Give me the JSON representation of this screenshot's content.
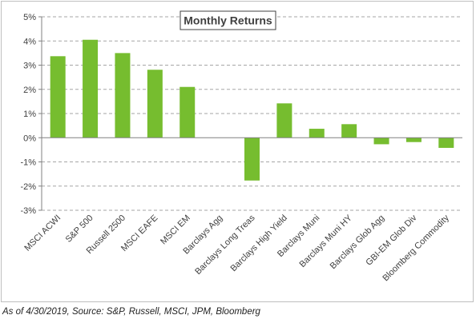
{
  "chart_data": {
    "type": "bar",
    "title": "Monthly Returns",
    "categories": [
      "MSCI ACWI",
      "S&P 500",
      "Russell 2500",
      "MSCI EAFE",
      "MSCI EM",
      "Barclays Agg",
      "Barclays Long Treas",
      "Barclays High Yield",
      "Barclays Muni",
      "Barclays Muni HY",
      "Barclays Glob Agg",
      "GBI-EM Glob Div",
      "Bloomberg Commodity"
    ],
    "values": [
      3.37,
      4.05,
      3.5,
      2.81,
      2.1,
      0.0,
      -1.77,
      1.42,
      0.37,
      0.56,
      -0.27,
      -0.18,
      -0.42
    ],
    "y_ticks": [
      "5%",
      "4%",
      "3%",
      "2%",
      "1%",
      "0%",
      "-1%",
      "-2%",
      "-3%"
    ],
    "ylim": [
      -3,
      5
    ],
    "y_unit": "%",
    "xlabel": "",
    "ylabel": "",
    "grid": true,
    "bar_color": "#76bd2f",
    "gridline_color": "#a6a6a6"
  },
  "footnote": "As of 4/30/2019, Source: S&P, Russell, MSCI, JPM, Bloomberg"
}
